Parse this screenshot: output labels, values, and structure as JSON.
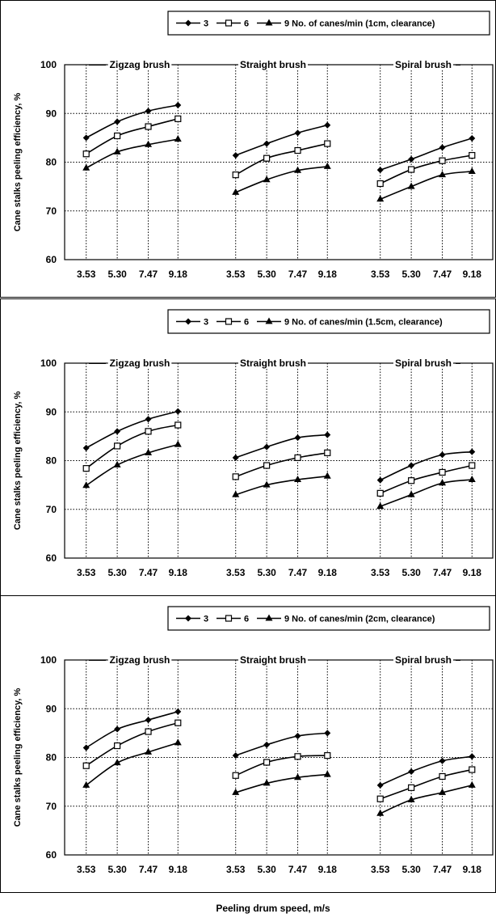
{
  "figure": {
    "x_axis_label": "Peeling drum speed, m/s",
    "y_axis_label": "Cane stalks peeling efficiency, %"
  },
  "chart_data": [
    {
      "type": "line",
      "legend": {
        "labels": [
          "3",
          "6",
          "9"
        ],
        "suffix": "No. of canes/min (1cm, clearance)",
        "placement": "top-right",
        "markers": [
          "diamond-filled",
          "square-open",
          "triangle-filled"
        ]
      },
      "categories": [
        "3.53",
        "5.30",
        "7.47",
        "9.18"
      ],
      "ylim": [
        60,
        100
      ],
      "yticks": [
        60,
        70,
        80,
        90,
        100
      ],
      "grid": true,
      "ylabel": "Cane stalks peeling efficiency, %",
      "groups": [
        {
          "title": "Zigzag brush",
          "series": [
            {
              "name": "3",
              "values": [
                85.0,
                88.3,
                90.5,
                91.7
              ]
            },
            {
              "name": "6",
              "values": [
                81.7,
                85.4,
                87.3,
                88.9
              ]
            },
            {
              "name": "9",
              "values": [
                78.8,
                82.1,
                83.6,
                84.7
              ]
            }
          ]
        },
        {
          "title": "Straight brush",
          "series": [
            {
              "name": "3",
              "values": [
                81.4,
                83.8,
                86.0,
                87.6
              ]
            },
            {
              "name": "6",
              "values": [
                77.4,
                80.8,
                82.4,
                83.8
              ]
            },
            {
              "name": "9",
              "values": [
                73.8,
                76.4,
                78.3,
                79.1
              ]
            }
          ]
        },
        {
          "title": "Spiral brush",
          "series": [
            {
              "name": "3",
              "values": [
                78.4,
                80.6,
                83.0,
                84.9
              ]
            },
            {
              "name": "6",
              "values": [
                75.6,
                78.5,
                80.3,
                81.4
              ]
            },
            {
              "name": "9",
              "values": [
                72.4,
                75.0,
                77.4,
                78.1
              ]
            }
          ]
        }
      ]
    },
    {
      "type": "line",
      "legend": {
        "labels": [
          "3",
          "6",
          "9"
        ],
        "suffix": "No. of canes/min (1.5cm, clearance)",
        "placement": "top-right",
        "markers": [
          "diamond-filled",
          "square-open",
          "triangle-filled"
        ]
      },
      "categories": [
        "3.53",
        "5.30",
        "7.47",
        "9.18"
      ],
      "ylim": [
        60,
        100
      ],
      "yticks": [
        60,
        70,
        80,
        90,
        100
      ],
      "grid": true,
      "ylabel": "Cane stalks peeling efficiency, %",
      "groups": [
        {
          "title": "Zigzag brush",
          "series": [
            {
              "name": "3",
              "values": [
                82.6,
                86.0,
                88.5,
                90.1
              ]
            },
            {
              "name": "6",
              "values": [
                78.4,
                83.0,
                86.0,
                87.3
              ]
            },
            {
              "name": "9",
              "values": [
                74.9,
                79.1,
                81.6,
                83.3
              ]
            }
          ]
        },
        {
          "title": "Straight brush",
          "series": [
            {
              "name": "3",
              "values": [
                80.6,
                82.8,
                84.7,
                85.3
              ]
            },
            {
              "name": "6",
              "values": [
                76.7,
                79.0,
                80.6,
                81.6
              ]
            },
            {
              "name": "9",
              "values": [
                73.0,
                75.0,
                76.1,
                76.8
              ]
            }
          ]
        },
        {
          "title": "Spiral brush",
          "series": [
            {
              "name": "3",
              "values": [
                76.0,
                79.0,
                81.2,
                81.8
              ]
            },
            {
              "name": "6",
              "values": [
                73.3,
                75.9,
                77.6,
                79.0
              ]
            },
            {
              "name": "9",
              "values": [
                70.6,
                73.0,
                75.4,
                76.1
              ]
            }
          ]
        }
      ]
    },
    {
      "type": "line",
      "legend": {
        "labels": [
          "3",
          "6",
          "9"
        ],
        "suffix": "No. of canes/min (2cm, clearance)",
        "placement": "top-right",
        "markers": [
          "diamond-filled",
          "square-open",
          "triangle-filled"
        ]
      },
      "categories": [
        "3.53",
        "5.30",
        "7.47",
        "9.18"
      ],
      "ylim": [
        60,
        100
      ],
      "yticks": [
        60,
        70,
        80,
        90,
        100
      ],
      "grid": true,
      "ylabel": "Cane stalks peeling efficiency, %",
      "xlabel": "Peeling drum speed, m/s",
      "groups": [
        {
          "title": "Zigzag brush",
          "series": [
            {
              "name": "3",
              "values": [
                82.0,
                85.8,
                87.7,
                89.4
              ]
            },
            {
              "name": "6",
              "values": [
                78.3,
                82.4,
                85.3,
                87.1
              ]
            },
            {
              "name": "9",
              "values": [
                74.3,
                78.9,
                81.1,
                83.0
              ]
            }
          ]
        },
        {
          "title": "Straight brush",
          "series": [
            {
              "name": "3",
              "values": [
                80.4,
                82.6,
                84.4,
                85.0
              ]
            },
            {
              "name": "6",
              "values": [
                76.3,
                79.0,
                80.2,
                80.4
              ]
            },
            {
              "name": "9",
              "values": [
                72.8,
                74.7,
                75.9,
                76.5
              ]
            }
          ]
        },
        {
          "title": "Spiral brush",
          "series": [
            {
              "name": "3",
              "values": [
                74.3,
                77.1,
                79.3,
                80.2
              ]
            },
            {
              "name": "6",
              "values": [
                71.5,
                73.8,
                76.1,
                77.5
              ]
            },
            {
              "name": "9",
              "values": [
                68.5,
                71.3,
                72.8,
                74.3
              ]
            }
          ]
        }
      ]
    }
  ]
}
